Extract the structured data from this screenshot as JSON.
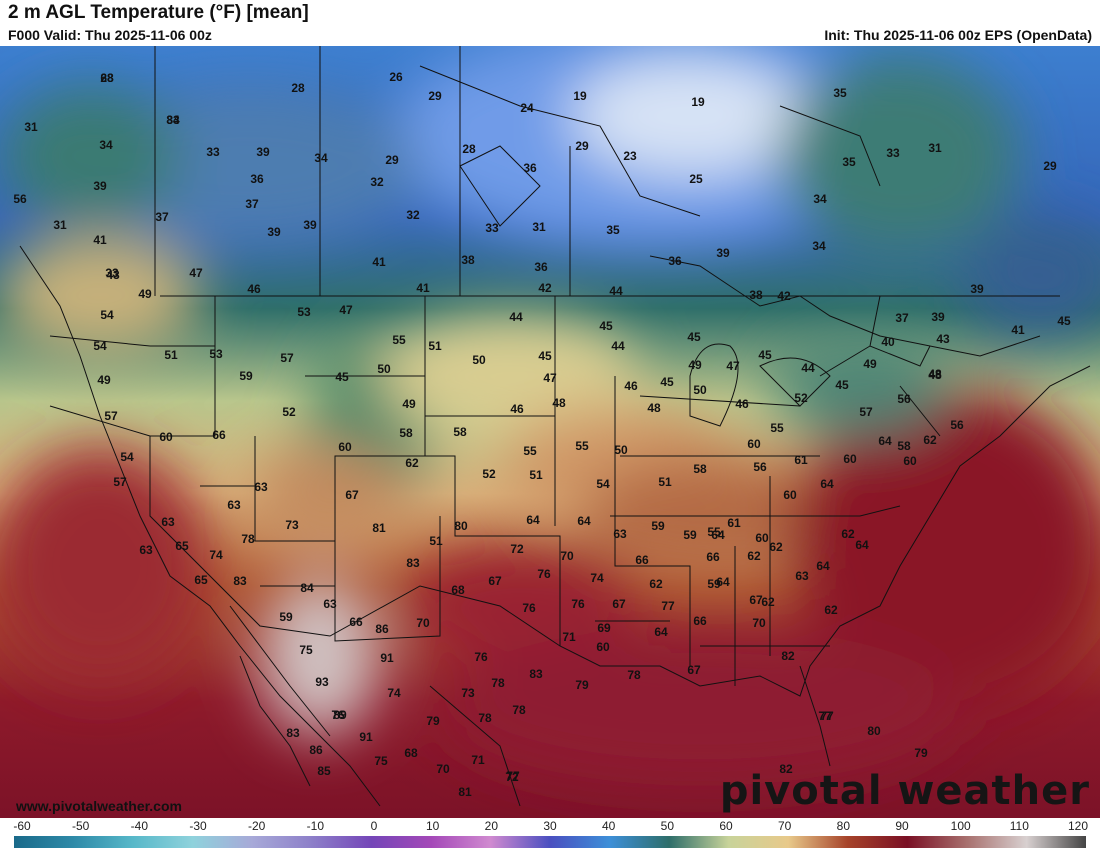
{
  "header": {
    "title": "2 m AGL Temperature (°F) [mean]",
    "valid": "F000 Valid: Thu 2025-11-06 00z",
    "init": "Init: Thu 2025-11-06 00z EPS (OpenData)"
  },
  "footer": {
    "website": "www.pivotalweather.com",
    "brand": "pivotal weather"
  },
  "colorbar": {
    "ticks": [
      "-60",
      "-50",
      "-40",
      "-30",
      "-20",
      "-10",
      "0",
      "10",
      "20",
      "30",
      "40",
      "50",
      "60",
      "70",
      "80",
      "90",
      "100",
      "110",
      "120"
    ],
    "stops": [
      "#1a6a8a",
      "#2e8aa8",
      "#57b8c9",
      "#8fd2dc",
      "#a7a9d8",
      "#8d7fc9",
      "#7446b8",
      "#a448b8",
      "#d08ad0",
      "#4a4fc0",
      "#3d8fd8",
      "#2e6e6a",
      "#c8d39a",
      "#e8c98a",
      "#a6432a",
      "#7a1025",
      "#a8706e",
      "#d8d0d0",
      "#444444"
    ]
  },
  "map": {
    "temperature_labels": [
      "28",
      "34",
      "31",
      "34",
      "39",
      "56",
      "31",
      "37",
      "41",
      "33",
      "28",
      "26",
      "29",
      "24",
      "19",
      "33",
      "39",
      "36",
      "37",
      "39",
      "34",
      "29",
      "32",
      "32",
      "39",
      "33",
      "31",
      "28",
      "36",
      "29",
      "23",
      "25",
      "35",
      "34",
      "35",
      "33",
      "31",
      "29",
      "34",
      "35",
      "19",
      "39",
      "38",
      "36",
      "41",
      "38",
      "39",
      "42",
      "42",
      "41",
      "44",
      "46",
      "53",
      "47",
      "47",
      "43",
      "49",
      "54",
      "54",
      "51",
      "53",
      "57",
      "49",
      "59",
      "45",
      "50",
      "55",
      "49",
      "51",
      "50",
      "45",
      "47",
      "48",
      "46",
      "44",
      "45",
      "44",
      "46",
      "45",
      "45",
      "49",
      "47",
      "50",
      "45",
      "46",
      "48",
      "36",
      "40",
      "43",
      "48",
      "41",
      "45",
      "37",
      "39",
      "49",
      "45",
      "44",
      "48",
      "52",
      "57",
      "56",
      "56",
      "57",
      "60",
      "66",
      "52",
      "54",
      "57",
      "60",
      "58",
      "62",
      "58",
      "55",
      "50",
      "52",
      "51",
      "55",
      "54",
      "51",
      "55",
      "58",
      "61",
      "60",
      "61",
      "55",
      "56",
      "60",
      "64",
      "60",
      "62",
      "64",
      "64",
      "58",
      "60",
      "62",
      "63",
      "63",
      "63",
      "63",
      "65",
      "74",
      "78",
      "73",
      "67",
      "81",
      "80",
      "51",
      "64",
      "64",
      "63",
      "59",
      "59",
      "64",
      "66",
      "66",
      "62",
      "60",
      "59",
      "62",
      "62",
      "63",
      "64",
      "62",
      "62",
      "65",
      "83",
      "84",
      "83",
      "72",
      "70",
      "67",
      "76",
      "74",
      "68",
      "77",
      "67",
      "64",
      "63",
      "66",
      "76",
      "76",
      "71",
      "69",
      "70",
      "67",
      "66",
      "64",
      "60",
      "59",
      "86",
      "70",
      "75",
      "93",
      "91",
      "76",
      "78",
      "83",
      "73",
      "78",
      "79",
      "78",
      "67",
      "74",
      "75",
      "72",
      "82",
      "77",
      "77",
      "89",
      "79",
      "78",
      "80",
      "83",
      "86",
      "91",
      "79",
      "76",
      "68",
      "70",
      "71",
      "77",
      "81",
      "85",
      "82",
      "68",
      "83"
    ]
  }
}
